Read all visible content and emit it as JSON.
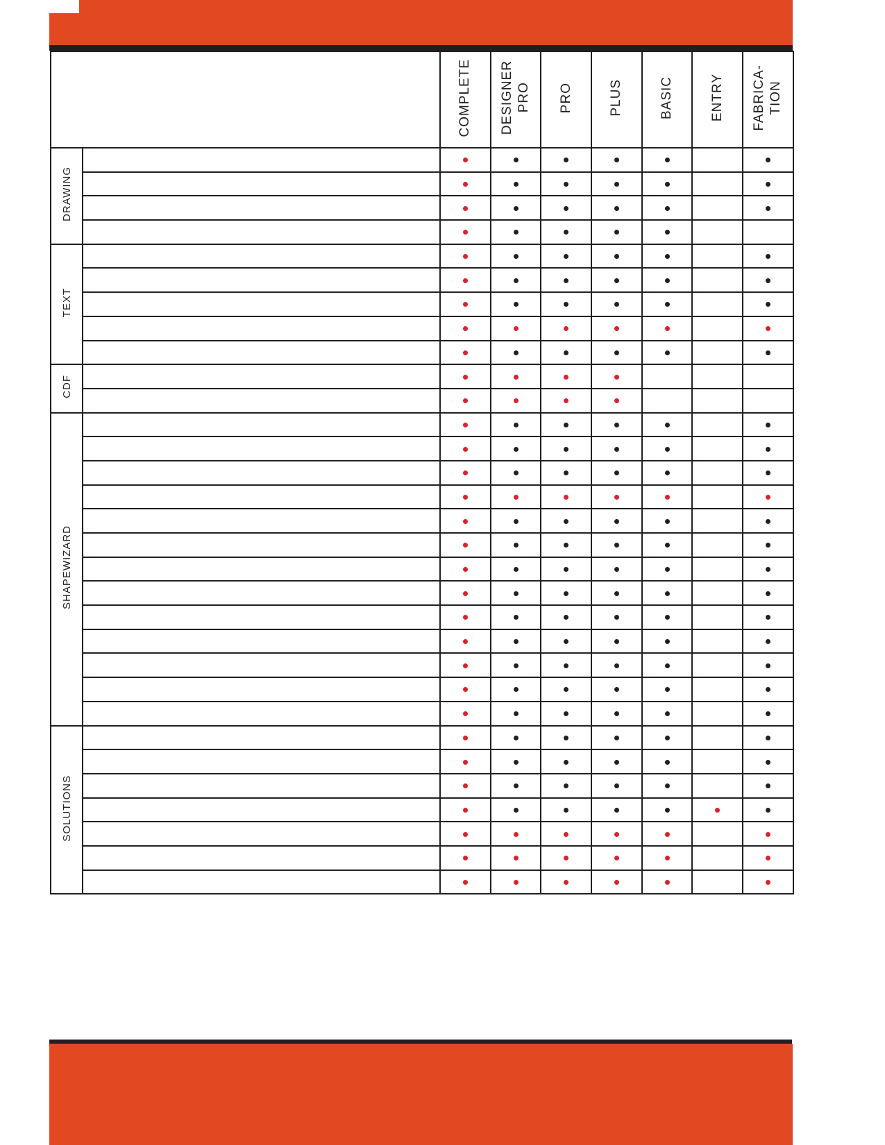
{
  "colors": {
    "accent": "#e24822",
    "ink": "#231f20",
    "dot_red": "#d7232f",
    "dot_black": "#231f20"
  },
  "columns": [
    "COMPLETE",
    "DESIGNER\nPRO",
    "PRO",
    "PLUS",
    "BASIC",
    "ENTRY",
    "FABRICA-\nTION"
  ],
  "legend_note": "r = red dot, b = black dot, empty = not included",
  "groups": [
    {
      "label": "DRAWING",
      "rows": [
        [
          "r",
          "b",
          "b",
          "b",
          "b",
          "",
          "b"
        ],
        [
          "r",
          "b",
          "b",
          "b",
          "b",
          "",
          "b"
        ],
        [
          "r",
          "b",
          "b",
          "b",
          "b",
          "",
          "b"
        ],
        [
          "r",
          "b",
          "b",
          "b",
          "b",
          "",
          ""
        ]
      ]
    },
    {
      "label": "TEXT",
      "rows": [
        [
          "r",
          "b",
          "b",
          "b",
          "b",
          "",
          "b"
        ],
        [
          "r",
          "b",
          "b",
          "b",
          "b",
          "",
          "b"
        ],
        [
          "r",
          "b",
          "b",
          "b",
          "b",
          "",
          "b"
        ],
        [
          "r",
          "r",
          "r",
          "r",
          "r",
          "",
          "r"
        ],
        [
          "r",
          "b",
          "b",
          "b",
          "b",
          "",
          "b"
        ]
      ]
    },
    {
      "label": "CDF",
      "rows": [
        [
          "r",
          "r",
          "r",
          "r",
          "",
          "",
          ""
        ],
        [
          "r",
          "r",
          "r",
          "r",
          "",
          "",
          ""
        ]
      ]
    },
    {
      "label": "SHAPEWIZARD",
      "rows": [
        [
          "r",
          "b",
          "b",
          "b",
          "b",
          "",
          "b"
        ],
        [
          "r",
          "b",
          "b",
          "b",
          "b",
          "",
          "b"
        ],
        [
          "r",
          "b",
          "b",
          "b",
          "b",
          "",
          "b"
        ],
        [
          "r",
          "r",
          "r",
          "r",
          "r",
          "",
          "r"
        ],
        [
          "r",
          "b",
          "b",
          "b",
          "b",
          "",
          "b"
        ],
        [
          "r",
          "b",
          "b",
          "b",
          "b",
          "",
          "b"
        ],
        [
          "r",
          "b",
          "b",
          "b",
          "b",
          "",
          "b"
        ],
        [
          "r",
          "b",
          "b",
          "b",
          "b",
          "",
          "b"
        ],
        [
          "r",
          "b",
          "b",
          "b",
          "b",
          "",
          "b"
        ],
        [
          "r",
          "b",
          "b",
          "b",
          "b",
          "",
          "b"
        ],
        [
          "r",
          "b",
          "b",
          "b",
          "b",
          "",
          "b"
        ],
        [
          "r",
          "b",
          "b",
          "b",
          "b",
          "",
          "b"
        ],
        [
          "r",
          "b",
          "b",
          "b",
          "b",
          "",
          "b"
        ]
      ]
    },
    {
      "label": "SOLUTIONS",
      "rows": [
        [
          "r",
          "b",
          "b",
          "b",
          "b",
          "",
          "b"
        ],
        [
          "r",
          "b",
          "b",
          "b",
          "b",
          "",
          "b"
        ],
        [
          "r",
          "b",
          "b",
          "b",
          "b",
          "",
          "b"
        ],
        [
          "r",
          "b",
          "b",
          "b",
          "b",
          "r",
          "b"
        ],
        [
          "r",
          "r",
          "r",
          "r",
          "r",
          "",
          "r"
        ],
        [
          "r",
          "r",
          "r",
          "r",
          "r",
          "",
          "r"
        ],
        [
          "r",
          "r",
          "r",
          "r",
          "r",
          "",
          "r"
        ]
      ]
    }
  ]
}
